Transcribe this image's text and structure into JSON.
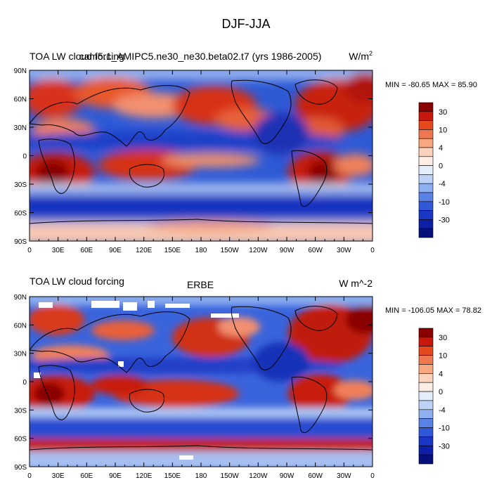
{
  "page": {
    "title": "DJF-JJA"
  },
  "chart_data": [
    {
      "type": "heatmap",
      "title_left": "TOA LW cloud forcing",
      "title_center": "cam5.1_AMIPC5.ne30_ne30.beta02.t7 (yrs 1986-2005)",
      "units": "W/m",
      "units_sup": "2",
      "stats": "MIN = -80.65  MAX =  85.90",
      "min": -80.65,
      "max": 85.9,
      "xlim": [
        0,
        360
      ],
      "ylim": [
        -90,
        90
      ],
      "x_ticks": [
        "0",
        "30E",
        "60E",
        "90E",
        "120E",
        "150E",
        "180",
        "150W",
        "120W",
        "90W",
        "60W",
        "30W",
        "0"
      ],
      "y_ticks": [
        "90N",
        "60N",
        "30N",
        "0",
        "30S",
        "60S",
        "90S"
      ],
      "colorbar_labels": [
        "30",
        "10",
        "4",
        "0",
        "-4",
        "-10",
        "-30"
      ],
      "colorbar_colors": [
        "#8a0000",
        "#c8180c",
        "#e54a1e",
        "#f07850",
        "#f8a880",
        "#fbd2bc",
        "#fdeee4",
        "#e4eefa",
        "#bcd2f6",
        "#8eb0f0",
        "#5a82e6",
        "#3158d8",
        "#1a36c4",
        "#0c1fa6",
        "#05107a"
      ]
    },
    {
      "type": "heatmap",
      "title_left": "TOA LW cloud forcing",
      "title_center": "ERBE",
      "units": "W m^-2",
      "units_sup": "",
      "stats": "MIN = -106.05  MAX =  78.82",
      "min": -106.05,
      "max": 78.82,
      "xlim": [
        0,
        360
      ],
      "ylim": [
        -90,
        90
      ],
      "x_ticks": [
        "0",
        "30E",
        "60E",
        "90E",
        "120E",
        "150E",
        "180",
        "150W",
        "120W",
        "90W",
        "60W",
        "30W",
        "0"
      ],
      "y_ticks": [
        "90N",
        "60N",
        "30N",
        "0",
        "30S",
        "60S",
        "90S"
      ],
      "colorbar_labels": [
        "30",
        "10",
        "4",
        "0",
        "-4",
        "-10",
        "-30"
      ],
      "colorbar_colors": [
        "#8a0000",
        "#c8180c",
        "#e54a1e",
        "#f07850",
        "#f8a880",
        "#fbd2bc",
        "#fdeee4",
        "#e4eefa",
        "#bcd2f6",
        "#8eb0f0",
        "#5a82e6",
        "#3158d8",
        "#1a36c4",
        "#0c1fa6",
        "#05107a"
      ]
    }
  ]
}
